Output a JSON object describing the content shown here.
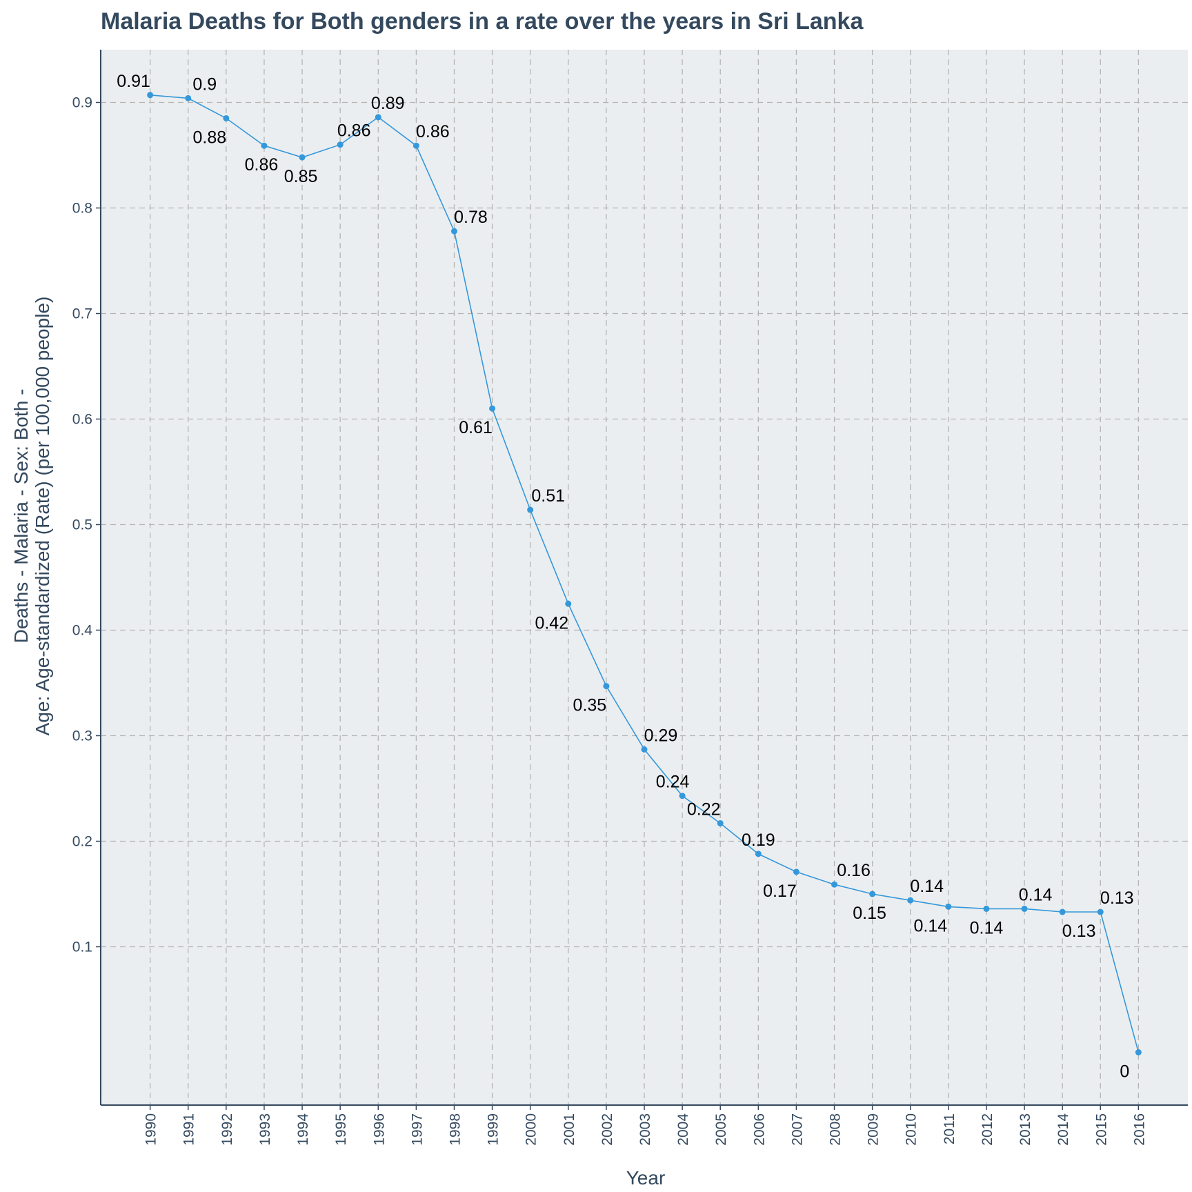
{
  "chart_data": {
    "type": "line",
    "title": "Malaria Deaths for Both genders in a rate over the years in Sri Lanka",
    "xlabel": "Year",
    "ylabel_lines": [
      "Deaths - Malaria - Sex: Both -",
      "Age: Age-standardized (Rate) (per 100,000 people)"
    ],
    "x": [
      1990,
      1991,
      1992,
      1993,
      1994,
      1995,
      1996,
      1997,
      1998,
      1999,
      2000,
      2001,
      2002,
      2003,
      2004,
      2005,
      2006,
      2007,
      2008,
      2009,
      2010,
      2011,
      2012,
      2013,
      2014,
      2015,
      2016
    ],
    "y": [
      0.907,
      0.904,
      0.885,
      0.859,
      0.848,
      0.86,
      0.886,
      0.859,
      0.778,
      0.61,
      0.514,
      0.425,
      0.347,
      0.287,
      0.243,
      0.217,
      0.188,
      0.171,
      0.159,
      0.15,
      0.144,
      0.138,
      0.136,
      0.136,
      0.133,
      0.133,
      0.0
    ],
    "labels": [
      "0.91",
      "0.9",
      "0.88",
      "0.86",
      "0.85",
      "0.86",
      "0.89",
      "0.86",
      "0.78",
      "0.61",
      "0.51",
      "0.42",
      "0.35",
      "0.29",
      "0.24",
      "0.22",
      "0.19",
      "0.17",
      "0.16",
      "0.15",
      "0.14",
      "0.14",
      "0.14",
      "0.14",
      "0.13",
      "0.13",
      "0"
    ],
    "yticks": [
      0.1,
      0.2,
      0.3,
      0.4,
      0.5,
      0.6,
      0.7,
      0.8,
      0.9
    ],
    "ylim": [
      -0.05,
      0.95
    ],
    "xlim": [
      1988.7,
      2017.3
    ],
    "grid": true,
    "legend": "none",
    "colors": {
      "line": "#3498db",
      "panel": "#ebeef0",
      "grid": "#b4b4b4",
      "text": "#34495e",
      "label": "#000000"
    }
  }
}
